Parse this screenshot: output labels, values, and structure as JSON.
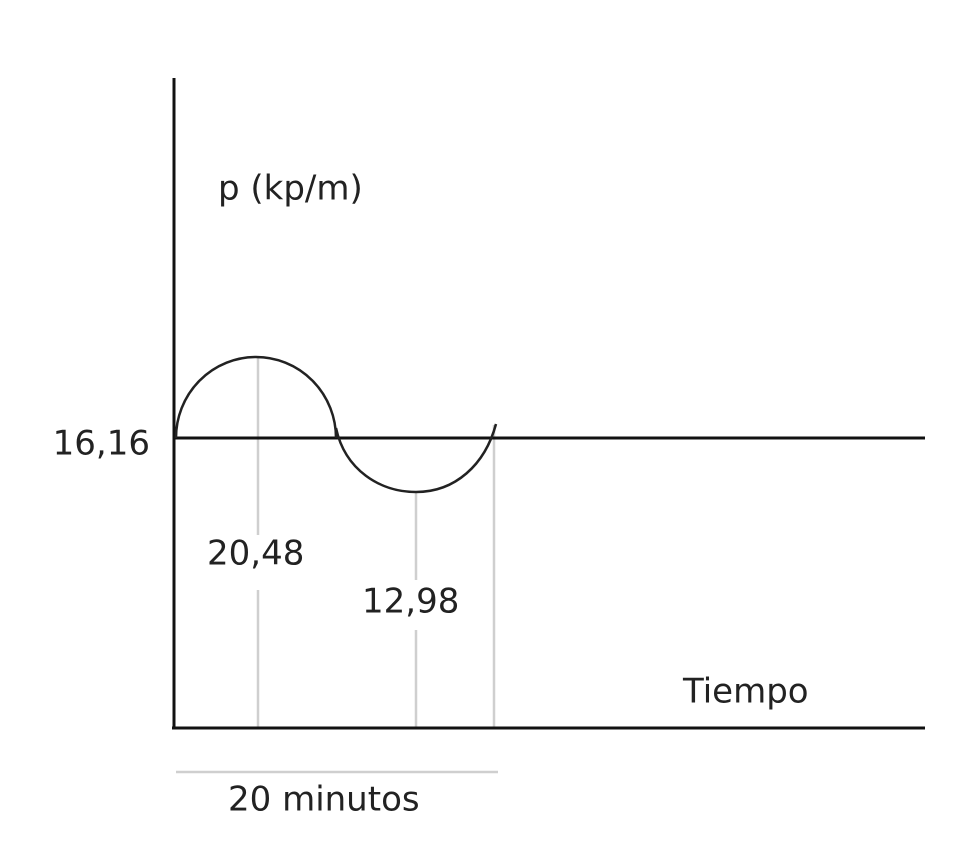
{
  "y_axis_label": "p (kp/m)",
  "baseline_label": "16,16",
  "peak_label": "20,48",
  "trough_label": "12,98",
  "x_axis_label": "Tiempo",
  "period_label": "20 minutos"
}
